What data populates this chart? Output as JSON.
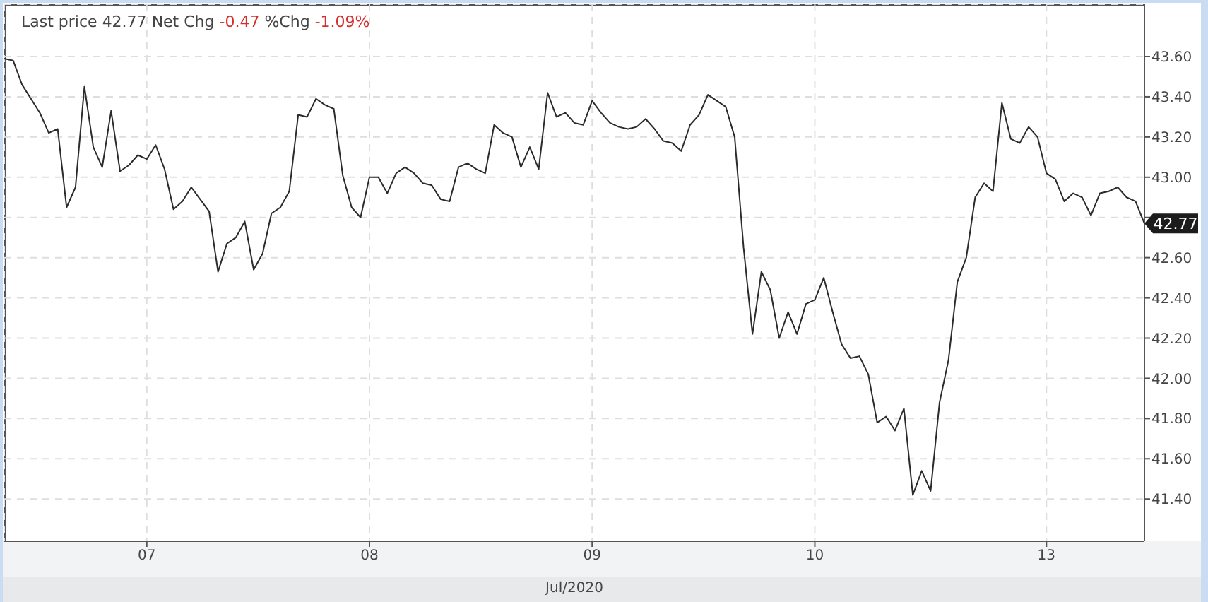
{
  "chart_data": {
    "type": "line",
    "title": "Last price 42.77 Net Chg -0.47 %Chg -1.09%",
    "xlabel": "Jul/2020",
    "categories": [
      null,
      null,
      null,
      null,
      null,
      null,
      null,
      null,
      null,
      null,
      null,
      null,
      null,
      null,
      null,
      null,
      "07",
      null,
      null,
      null,
      null,
      null,
      null,
      null,
      null,
      null,
      null,
      null,
      null,
      null,
      null,
      null,
      null,
      null,
      null,
      null,
      null,
      null,
      null,
      null,
      null,
      "08",
      null,
      null,
      null,
      null,
      null,
      null,
      null,
      null,
      null,
      null,
      null,
      null,
      null,
      null,
      null,
      null,
      null,
      null,
      null,
      null,
      null,
      null,
      null,
      null,
      "09",
      null,
      null,
      null,
      null,
      null,
      null,
      null,
      null,
      null,
      null,
      null,
      null,
      null,
      null,
      null,
      null,
      null,
      null,
      null,
      null,
      null,
      null,
      null,
      null,
      "10",
      null,
      null,
      null,
      null,
      null,
      null,
      null,
      null,
      null,
      null,
      null,
      null,
      null,
      null,
      null,
      null,
      null,
      null,
      null,
      null,
      null,
      null,
      null,
      null,
      null,
      "13",
      null,
      null,
      null,
      null,
      null,
      null,
      null,
      null,
      null,
      null,
      null
    ],
    "series": [
      {
        "color": "#2b2b2b",
        "values": [
          43.59,
          43.58,
          43.46,
          43.39,
          43.32,
          43.22,
          43.24,
          42.85,
          42.95,
          43.45,
          43.15,
          43.05,
          43.33,
          43.03,
          43.06,
          43.11,
          43.09,
          43.16,
          43.04,
          42.84,
          42.88,
          42.95,
          42.89,
          42.83,
          42.53,
          42.67,
          42.7,
          42.78,
          42.54,
          42.62,
          42.82,
          42.85,
          42.93,
          43.31,
          43.3,
          43.39,
          43.36,
          43.34,
          43.01,
          42.85,
          42.8,
          43.0,
          43.0,
          42.92,
          43.02,
          43.05,
          43.02,
          42.97,
          42.96,
          42.89,
          42.88,
          43.05,
          43.07,
          43.04,
          43.02,
          43.26,
          43.22,
          43.2,
          43.05,
          43.15,
          43.04,
          43.42,
          43.3,
          43.32,
          43.27,
          43.26,
          43.38,
          43.32,
          43.27,
          43.25,
          43.24,
          43.25,
          43.29,
          43.24,
          43.18,
          43.17,
          43.13,
          43.26,
          43.31,
          43.41,
          43.38,
          43.35,
          43.2,
          42.65,
          42.22,
          42.53,
          42.44,
          42.2,
          42.33,
          42.22,
          42.37,
          42.39,
          42.5,
          42.33,
          42.17,
          42.1,
          42.11,
          42.02,
          41.78,
          41.81,
          41.74,
          41.85,
          41.42,
          41.54,
          41.44,
          41.88,
          42.09,
          42.48,
          42.6,
          42.9,
          42.97,
          42.93,
          43.37,
          43.19,
          43.17,
          43.25,
          43.2,
          43.02,
          42.99,
          42.88,
          42.92,
          42.9,
          42.81,
          42.92,
          42.93,
          42.95,
          42.9,
          42.88,
          42.77
        ]
      }
    ],
    "ylim": [
      41.19,
      43.86
    ],
    "yticks": [
      {
        "value": 41.4,
        "label": "41.40"
      },
      {
        "value": 41.6,
        "label": "41.60"
      },
      {
        "value": 41.8,
        "label": "41.80"
      },
      {
        "value": 42,
        "label": "42.00"
      },
      {
        "value": 42.2,
        "label": "42.20"
      },
      {
        "value": 42.4,
        "label": "42.40"
      },
      {
        "value": 42.6,
        "label": "42.60"
      },
      {
        "value": 42.8,
        "label": null
      },
      {
        "value": 43,
        "label": "43.00"
      },
      {
        "value": 43.2,
        "label": "43.20"
      },
      {
        "value": 43.4,
        "label": "43.40"
      },
      {
        "value": 43.6,
        "label": "43.60"
      }
    ],
    "grid": true,
    "marker": "none",
    "line_style": "solid",
    "annotations": [
      "42.77"
    ]
  }
}
